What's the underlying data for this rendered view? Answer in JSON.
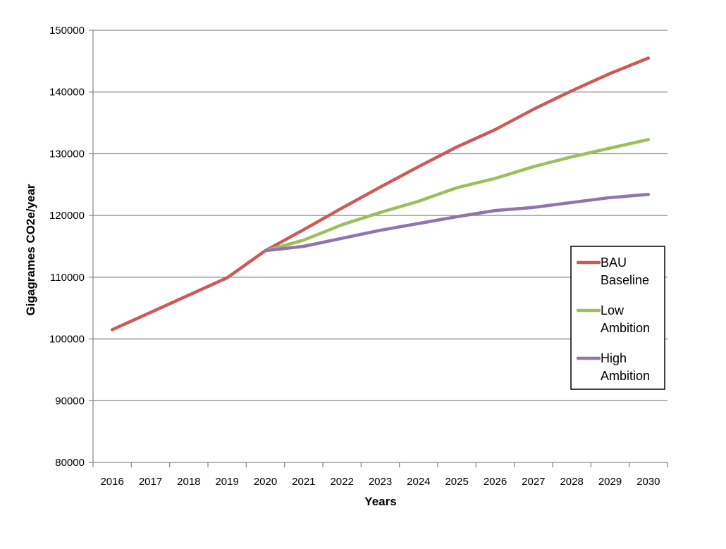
{
  "chart_data": {
    "type": "line",
    "xlabel": "Years",
    "ylabel": "Gigagrames CO2e/year",
    "ylim": [
      80000,
      150000
    ],
    "yticks": [
      "80000",
      "90000",
      "100000",
      "110000",
      "120000",
      "130000",
      "140000",
      "150000"
    ],
    "categories": [
      "2016",
      "2017",
      "2018",
      "2019",
      "2020",
      "2021",
      "2022",
      "2023",
      "2024",
      "2025",
      "2026",
      "2027",
      "2028",
      "2029",
      "2030"
    ],
    "grid": true,
    "legend_position": "right",
    "series": [
      {
        "name_lines": [
          "BAU",
          "Baseline"
        ],
        "color": "#cc5b57",
        "values": [
          101500,
          104300,
          107100,
          109900,
          114300,
          117700,
          121200,
          124600,
          127900,
          131100,
          133900,
          137200,
          140200,
          143000,
          145500
        ]
      },
      {
        "name_lines": [
          "Low",
          "Ambition"
        ],
        "color": "#9dbf5a",
        "values": [
          null,
          null,
          null,
          null,
          114300,
          116000,
          118500,
          120500,
          122300,
          124500,
          126000,
          127900,
          129500,
          130900,
          132300
        ]
      },
      {
        "name_lines": [
          "High",
          "Ambition"
        ],
        "color": "#8f74b0",
        "values": [
          null,
          null,
          null,
          null,
          114300,
          115000,
          116300,
          117600,
          118700,
          119800,
          120800,
          121300,
          122100,
          122900,
          123400
        ]
      }
    ]
  }
}
